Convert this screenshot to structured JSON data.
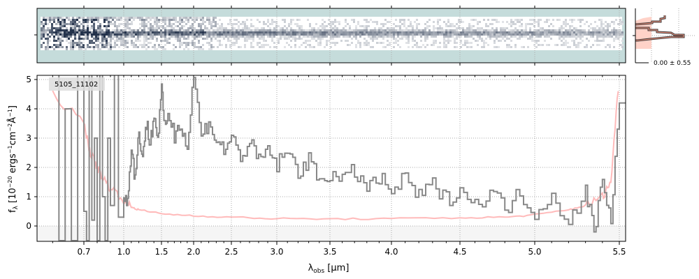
{
  "chart_data": [
    {
      "type": "heatmap",
      "panel": "2D spectrum",
      "colormap": "bone_r",
      "background_color": "#c5dcdb"
    },
    {
      "type": "line",
      "panel": "spatial profile",
      "annotation": "0.00 ± 0.55",
      "series_colors": [
        "#333333",
        "#ff9b85"
      ]
    },
    {
      "type": "line",
      "label": "5105_11102",
      "xlabel": "λobs [μm]",
      "ylabel": "fλ [10⁻²⁰ ergs⁻¹cm⁻²Å⁻¹]",
      "ylim": [
        -0.5,
        5.15
      ],
      "xlim": [
        0.55,
        5.52
      ],
      "grid": true,
      "xticks": [
        0.7,
        1.0,
        1.5,
        2.0,
        2.5,
        3.0,
        3.5,
        4.0,
        4.5,
        5.0,
        5.5
      ],
      "xtick_labels": [
        "0.7",
        "1.0",
        "1.5",
        "2.0",
        "2.5",
        "3.0",
        "3.5",
        "4.0",
        "4.5",
        "5.0",
        "5.5"
      ],
      "yticks": [
        0,
        1,
        2,
        3,
        4,
        5
      ],
      "ytick_labels": [
        "0",
        "1",
        "2",
        "3",
        "4",
        "5"
      ],
      "series": [
        {
          "role": "flux",
          "color": "#888888",
          "step": true,
          "x": [
            0.6,
            0.62,
            0.64,
            0.66,
            0.68,
            0.7,
            0.72,
            0.74,
            0.76,
            0.78,
            0.8,
            0.82,
            0.84,
            0.86,
            0.88,
            0.9,
            0.93,
            0.96,
            1.0,
            1.05,
            1.1,
            1.15,
            1.2,
            1.25,
            1.3,
            1.35,
            1.4,
            1.45,
            1.5,
            1.55,
            1.6,
            1.7,
            1.8,
            1.9,
            2.0,
            2.1,
            2.2,
            2.3,
            2.4,
            2.5,
            2.6,
            2.7,
            2.8,
            2.9,
            3.0,
            3.1,
            3.2,
            3.3,
            3.4,
            3.5,
            3.6,
            3.7,
            3.8,
            3.9,
            4.0,
            4.1,
            4.2,
            4.3,
            4.4,
            4.5,
            4.6,
            4.7,
            4.8,
            4.9,
            5.0,
            5.1,
            5.2,
            5.3,
            5.35,
            5.4,
            5.45,
            5.5
          ],
          "y": [
            5.2,
            -0.5,
            4.0,
            -0.5,
            5.2,
            0.5,
            -0.5,
            5.2,
            0.2,
            3.0,
            -0.5,
            5.2,
            1.0,
            -0.5,
            3.0,
            0.7,
            5.2,
            0.3,
            1.2,
            0.8,
            2.8,
            1.6,
            3.2,
            2.4,
            3.5,
            2.8,
            3.8,
            3.0,
            4.6,
            3.3,
            3.9,
            3.1,
            3.6,
            2.6,
            5.2,
            3.0,
            3.6,
            2.9,
            2.6,
            3.0,
            2.4,
            2.8,
            2.2,
            2.6,
            2.1,
            2.5,
            1.9,
            2.2,
            1.6,
            1.8,
            1.5,
            1.9,
            1.3,
            1.6,
            1.2,
            1.6,
            1.0,
            1.4,
            0.9,
            1.3,
            0.7,
            1.2,
            0.6,
            1.1,
            0.5,
            1.0,
            0.2,
            1.2,
            -0.2,
            1.6,
            0.3,
            4.2
          ]
        },
        {
          "role": "uncertainty",
          "color": "#ffb3b3",
          "x": [
            0.6,
            0.7,
            0.75,
            0.8,
            0.85,
            0.9,
            1.0,
            1.1,
            1.2,
            1.5,
            2.0,
            2.5,
            3.0,
            3.5,
            4.0,
            4.5,
            4.8,
            5.0,
            5.2,
            5.3,
            5.4,
            5.45,
            5.5
          ],
          "y": [
            4.5,
            3.5,
            2.5,
            2.0,
            1.6,
            1.3,
            0.9,
            0.65,
            0.55,
            0.42,
            0.35,
            0.3,
            0.25,
            0.24,
            0.25,
            0.28,
            0.3,
            0.38,
            0.55,
            0.7,
            1.0,
            1.5,
            5.2
          ]
        }
      ]
    }
  ]
}
